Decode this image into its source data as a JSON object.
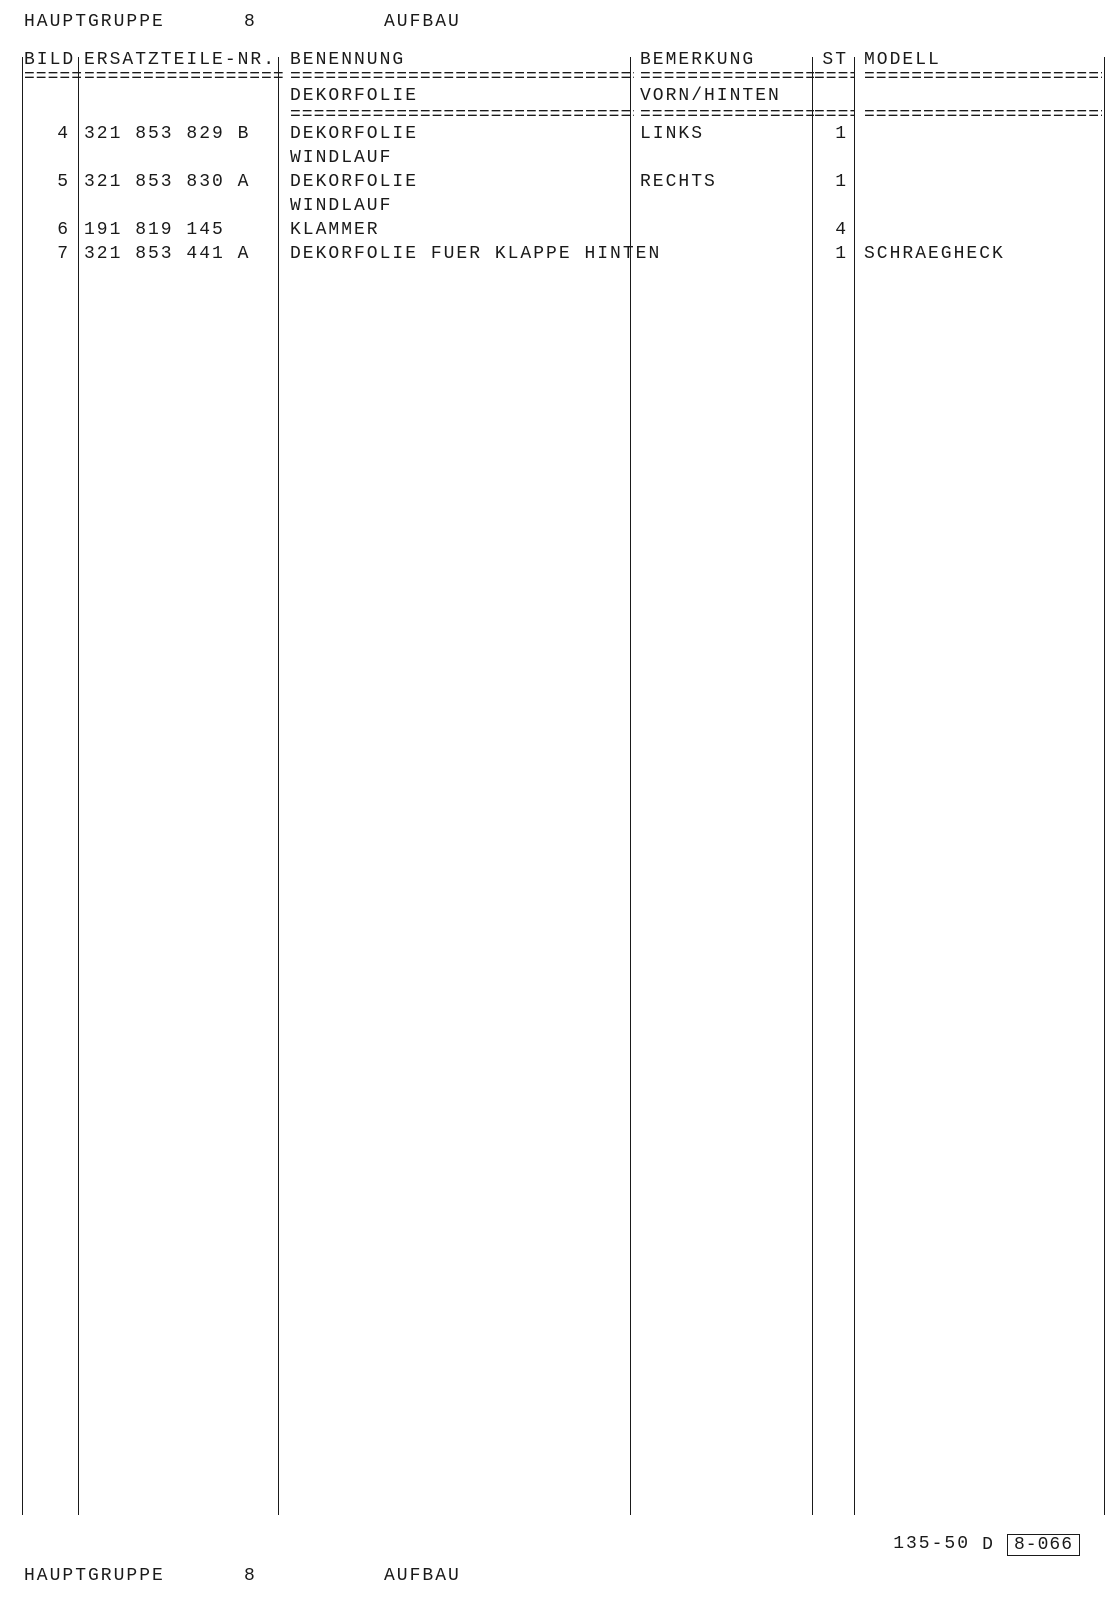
{
  "header": {
    "hauptgruppe_label": "HAUPTGRUPPE",
    "hauptgruppe_num": "8",
    "section_label": "AUFBAU"
  },
  "columns": {
    "bild": "BILD",
    "ersatz": "ERSATZTEILE-NR.",
    "benennung": "BENENNUNG",
    "bemerkung": "BEMERKUNG",
    "st": "ST",
    "modell": "MODELL"
  },
  "subheader": {
    "benennung": "DEKORFOLIE",
    "bemerkung": "VORN/HINTEN"
  },
  "rows": [
    {
      "bild": "4",
      "partnr": "321 853 829 B",
      "benennung": "DEKORFOLIE",
      "benennung2": "WINDLAUF",
      "bemerkung": "LINKS",
      "st": "1",
      "modell": ""
    },
    {
      "bild": "5",
      "partnr": "321 853 830 A",
      "benennung": "DEKORFOLIE",
      "benennung2": "WINDLAUF",
      "bemerkung": "RECHTS",
      "st": "1",
      "modell": ""
    },
    {
      "bild": "6",
      "partnr": "191 819 145",
      "benennung": "KLAMMER",
      "benennung2": "",
      "bemerkung": "",
      "st": "4",
      "modell": ""
    },
    {
      "bild": "7",
      "partnr": "321 853 441 A",
      "benennung": "DEKORFOLIE FUER KLAPPE HINTEN",
      "benennung2": "",
      "bemerkung": "",
      "st": "1",
      "modell": "SCHRAEGHECK"
    }
  ],
  "footer": {
    "page_ref": "135-50",
    "d_label": "D",
    "code_box": "8-066"
  },
  "divider_segment": "================================================================================",
  "colors": {
    "text": "#1a1a1a",
    "background": "#ffffff",
    "rule": "#1a1a1a"
  }
}
